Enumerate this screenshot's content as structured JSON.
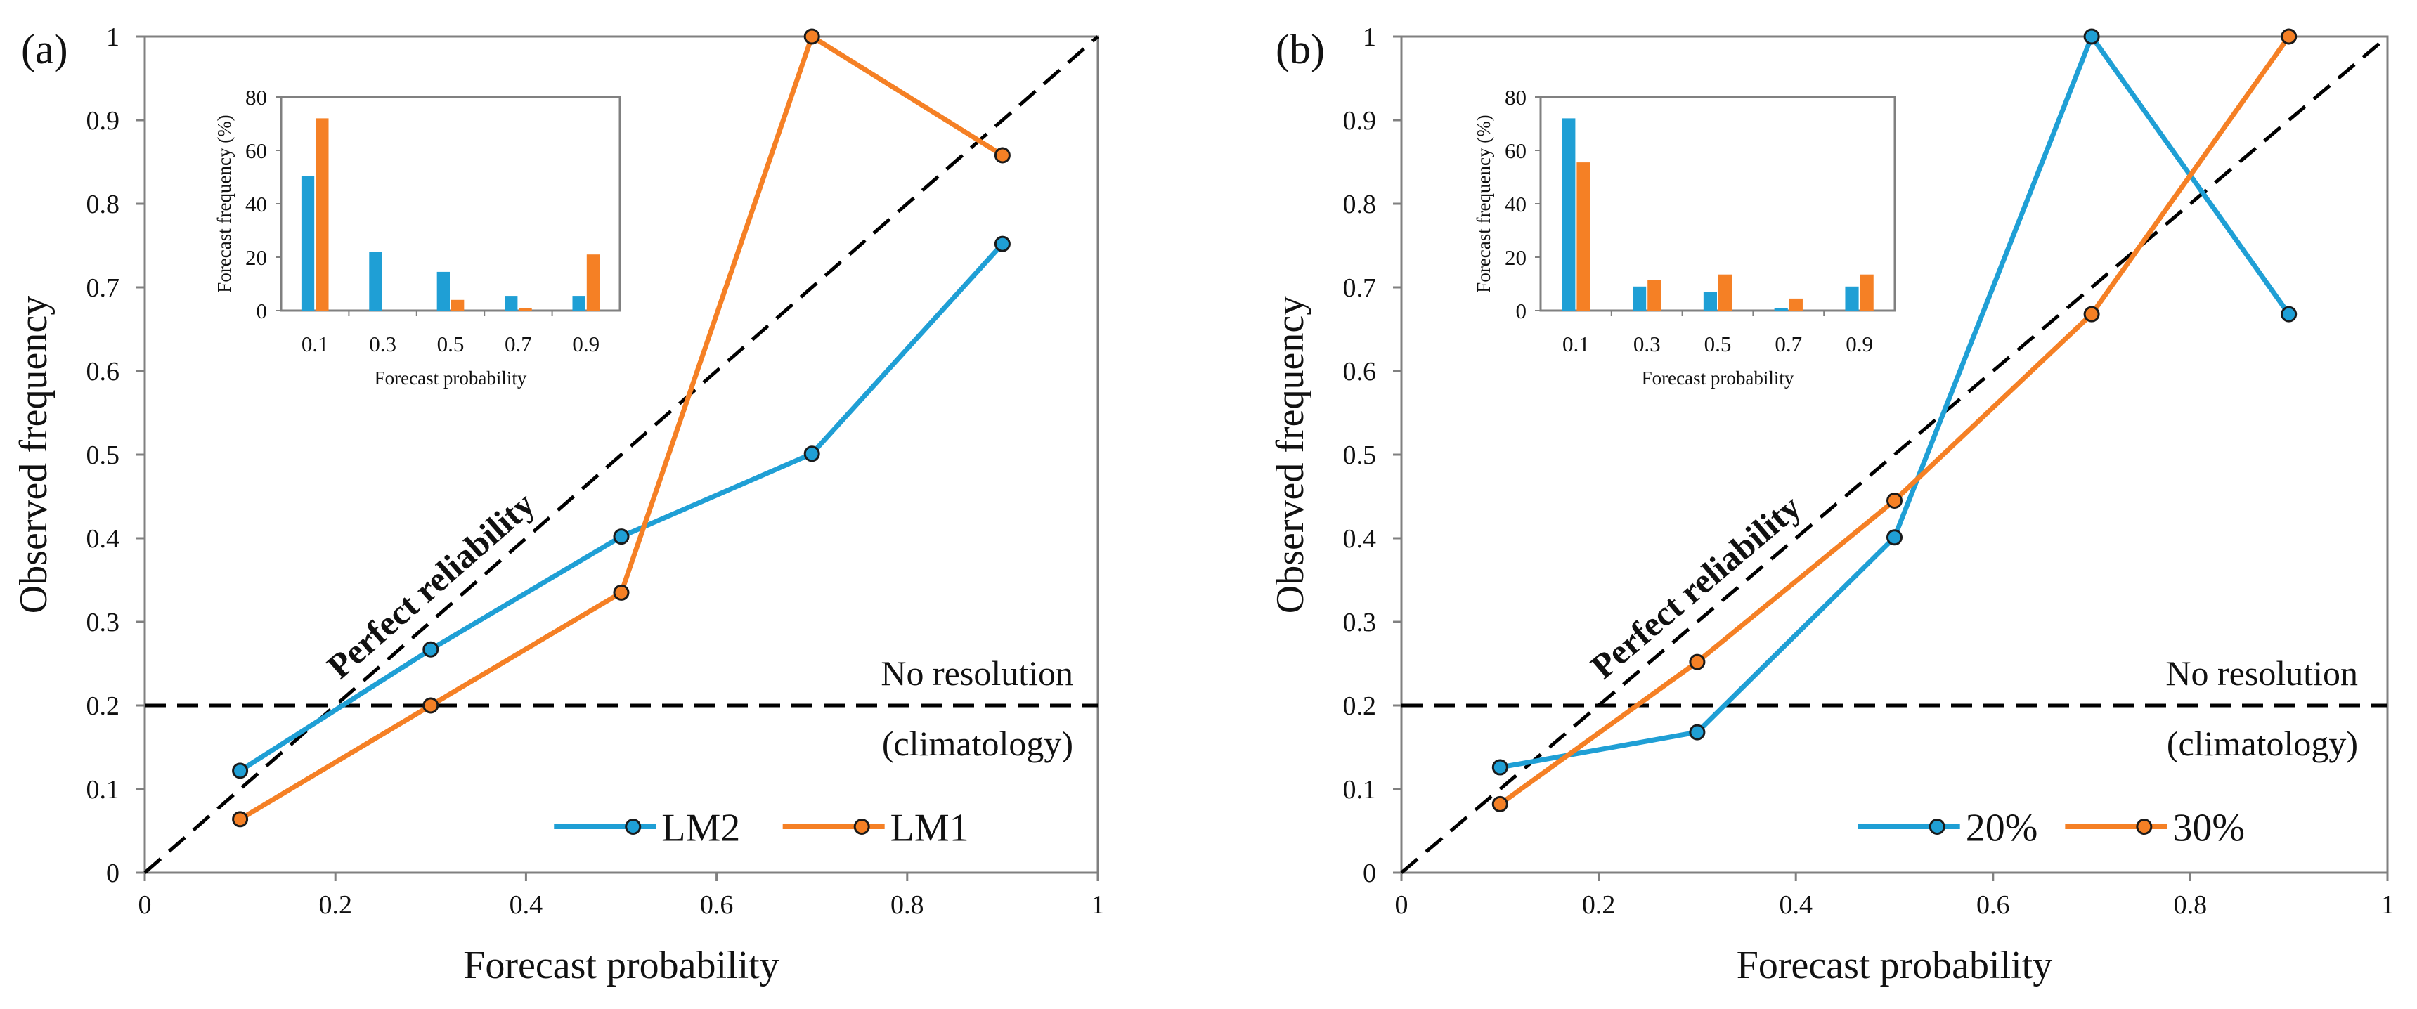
{
  "colors": {
    "series1": "#1f9fd5",
    "series2": "#f58025",
    "axis": "#808080",
    "dashed": "#000000",
    "marker_edge": "#1a1a1a"
  },
  "chart_data": [
    {
      "type": "line",
      "panel_label": "(a)",
      "xlabel": "Forecast probability",
      "ylabel": "Observed frequency",
      "xlim": [
        0,
        1
      ],
      "ylim": [
        0,
        1
      ],
      "x_ticks": [
        "0",
        "0.2",
        "0.4",
        "0.6",
        "0.8",
        "1"
      ],
      "y_ticks": [
        "0",
        "0.1",
        "0.2",
        "0.3",
        "0.4",
        "0.5",
        "0.6",
        "0.7",
        "0.8",
        "0.9",
        "1"
      ],
      "series": [
        {
          "name": "LM2",
          "x": [
            0.1,
            0.3,
            0.5,
            0.7,
            0.9
          ],
          "y": [
            0.122,
            0.267,
            0.402,
            0.501,
            0.752
          ]
        },
        {
          "name": "LM1",
          "x": [
            0.1,
            0.3,
            0.5,
            0.7,
            0.9
          ],
          "y": [
            0.064,
            0.2,
            0.335,
            1.0,
            0.858
          ]
        }
      ],
      "reference_lines": {
        "perfect_reliability": "Perfect  reliability",
        "no_resolution": "No  resolution",
        "climatology": "(climatology)",
        "climatology_value": 0.2
      },
      "inset": {
        "type": "bar",
        "xlabel": "Forecast probability",
        "ylabel": "Forecast frequency (%)",
        "categories": [
          "0.1",
          "0.3",
          "0.5",
          "0.7",
          "0.9"
        ],
        "ylim": [
          0,
          80
        ],
        "y_ticks": [
          "0",
          "20",
          "40",
          "60",
          "80"
        ],
        "series": [
          {
            "name": "LM2",
            "values": [
              50.5,
              22,
              14.5,
              5.5,
              5.5
            ]
          },
          {
            "name": "LM1",
            "values": [
              72,
              0,
              4,
              1,
              21
            ]
          }
        ]
      }
    },
    {
      "type": "line",
      "panel_label": "(b)",
      "xlabel": "Forecast probability",
      "ylabel": "Observed frequency",
      "xlim": [
        0,
        1
      ],
      "ylim": [
        0,
        1
      ],
      "x_ticks": [
        "0",
        "0.2",
        "0.4",
        "0.6",
        "0.8",
        "1"
      ],
      "y_ticks": [
        "0",
        "0.1",
        "0.2",
        "0.3",
        "0.4",
        "0.5",
        "0.6",
        "0.7",
        "0.8",
        "0.9",
        "1"
      ],
      "series": [
        {
          "name": "20%",
          "x": [
            0.1,
            0.3,
            0.5,
            0.7,
            0.9
          ],
          "y": [
            0.126,
            0.168,
            0.401,
            1.0,
            0.668
          ]
        },
        {
          "name": "30%",
          "x": [
            0.1,
            0.3,
            0.5,
            0.7,
            0.9
          ],
          "y": [
            0.082,
            0.252,
            0.445,
            0.668,
            1.0
          ]
        }
      ],
      "reference_lines": {
        "perfect_reliability": "Perfect  reliability",
        "no_resolution": "No  resolution",
        "climatology": "(climatology)",
        "climatology_value": 0.2
      },
      "inset": {
        "type": "bar",
        "xlabel": "Forecast probability",
        "ylabel": "Forecast frequency (%)",
        "categories": [
          "0.1",
          "0.3",
          "0.5",
          "0.7",
          "0.9"
        ],
        "ylim": [
          0,
          80
        ],
        "y_ticks": [
          "0",
          "20",
          "40",
          "60",
          "80"
        ],
        "series": [
          {
            "name": "20%",
            "values": [
              72,
              9,
              7,
              1,
              9
            ]
          },
          {
            "name": "30%",
            "values": [
              55.5,
              11.5,
              13.5,
              4.5,
              13.5
            ]
          }
        ]
      }
    }
  ]
}
